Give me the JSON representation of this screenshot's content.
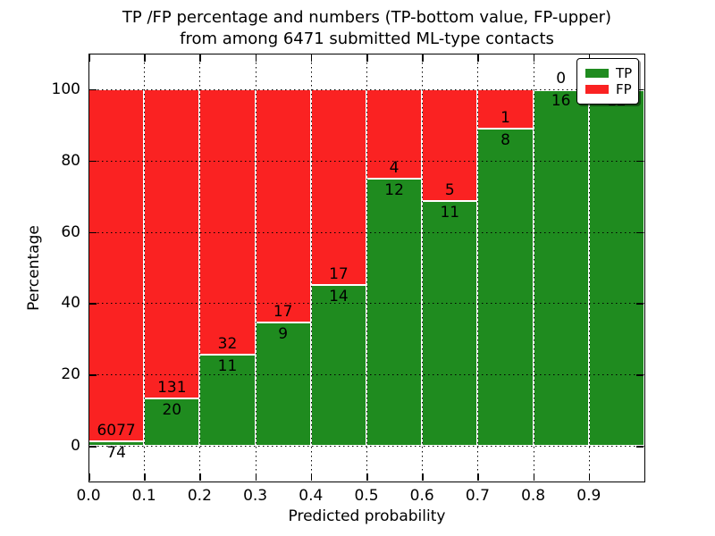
{
  "title": {
    "line1": "TP /FP percentage and numbers (TP-bottom value, FP-upper)",
    "line2": "from among 6471 submitted ML-type contacts"
  },
  "axis": {
    "xlabel": "Predicted probability",
    "ylabel": "Percentage",
    "x_tick_labels": [
      "0.0",
      "0.1",
      "0.2",
      "0.3",
      "0.4",
      "0.5",
      "0.6",
      "0.7",
      "0.8",
      "0.9"
    ],
    "y_tick_labels": [
      "0",
      "20",
      "40",
      "60",
      "80",
      "100"
    ]
  },
  "legend": {
    "items": [
      {
        "label": "TP",
        "color": "#1f8b1f"
      },
      {
        "label": "FP",
        "color": "#fa2222"
      }
    ]
  },
  "chart_data": {
    "type": "bar",
    "subtype": "stacked-percentage-histogram",
    "title": "TP /FP percentage and numbers (TP-bottom value, FP-upper) from among 6471 submitted ML-type contacts",
    "xlabel": "Predicted probability",
    "ylabel": "Percentage",
    "xlim": [
      0.0,
      1.0
    ],
    "ylim": [
      -10,
      110
    ],
    "grid": true,
    "grid_style": "dotted",
    "legend_position": "upper right",
    "bin_edges": [
      0.0,
      0.1,
      0.2,
      0.3,
      0.4,
      0.5,
      0.6,
      0.7,
      0.8,
      0.9,
      1.0
    ],
    "series": [
      {
        "name": "TP",
        "color": "#1f8b1f",
        "counts": [
          74,
          20,
          11,
          9,
          14,
          12,
          11,
          8,
          16,
          12
        ],
        "percent": [
          1.2,
          13.2,
          25.6,
          34.6,
          45.2,
          75.0,
          68.8,
          88.9,
          100.0,
          100.0
        ]
      },
      {
        "name": "FP",
        "color": "#fa2222",
        "counts": [
          6077,
          131,
          32,
          17,
          17,
          4,
          5,
          1,
          0,
          0
        ],
        "percent": [
          98.8,
          86.8,
          74.4,
          65.4,
          54.8,
          25.0,
          31.2,
          11.1,
          0.0,
          0.0
        ]
      }
    ],
    "bar_value_labels": {
      "tp": [
        "74",
        "20",
        "11",
        "9",
        "14",
        "12",
        "11",
        "8",
        "16",
        "12"
      ],
      "fp": [
        "6077",
        "131",
        "32",
        "17",
        "17",
        "4",
        "5",
        "1",
        "0",
        ""
      ]
    },
    "total_contacts": 6471
  }
}
